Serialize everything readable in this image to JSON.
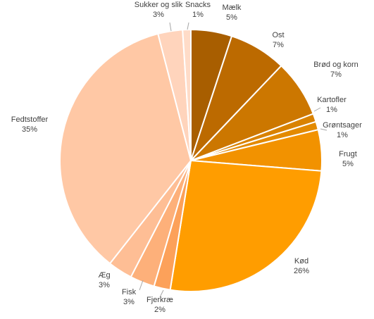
{
  "chart_data": {
    "type": "pie",
    "title": "",
    "start_angle_deg": 0,
    "direction": "clockwise",
    "slices": [
      {
        "label": "Mælk",
        "value": 5,
        "display": "5%",
        "color": "#A85E00"
      },
      {
        "label": "Ost",
        "value": 7,
        "display": "7%",
        "color": "#BC6A00"
      },
      {
        "label": "Brød og korn",
        "value": 7,
        "display": "7%",
        "color": "#CC7700"
      },
      {
        "label": "Kartofler",
        "value": 1,
        "display": "1%",
        "color": "#D98200"
      },
      {
        "label": "Grøntsager",
        "value": 1,
        "display": "1%",
        "color": "#E38A00"
      },
      {
        "label": "Frugt",
        "value": 5,
        "display": "5%",
        "color": "#F29200"
      },
      {
        "label": "Kød",
        "value": 26,
        "display": "26%",
        "color": "#FF9D00"
      },
      {
        "label": "Fjerkræ",
        "value": 2,
        "display": "2%",
        "color": "#FCA15A"
      },
      {
        "label": "Fisk",
        "value": 3,
        "display": "3%",
        "color": "#FDB07A"
      },
      {
        "label": "Æg",
        "value": 3,
        "display": "3%",
        "color": "#FEBE95"
      },
      {
        "label": "Fedtstoffer",
        "value": 35,
        "display": "35%",
        "color": "#FFC8A5"
      },
      {
        "label": "Sukker og slik",
        "value": 3,
        "display": "3%",
        "color": "#FFD4BC"
      },
      {
        "label": "Snacks",
        "value": 1,
        "display": "1%",
        "color": "#FFDCC8"
      }
    ],
    "legend": "none",
    "label_line_color": "#A6A6A6"
  }
}
